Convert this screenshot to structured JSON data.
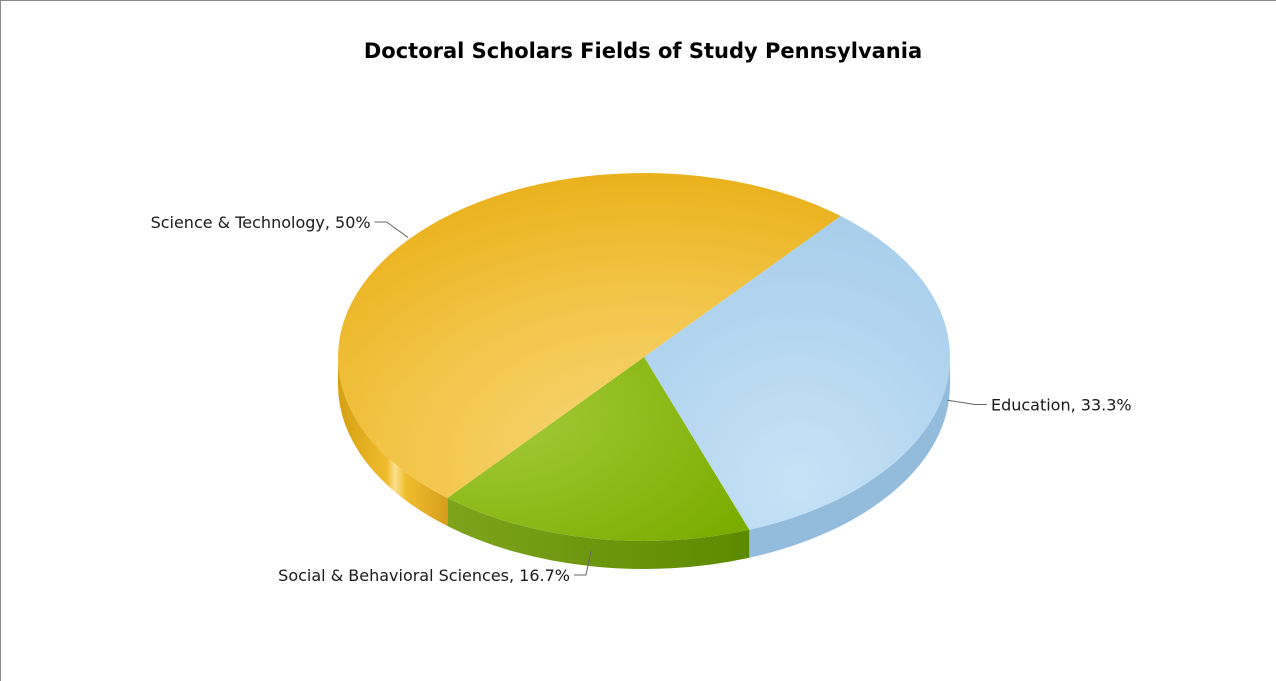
{
  "chart_data": {
    "type": "pie",
    "title": "Doctoral Scholars Fields of Study Pennsylvania",
    "categories": [
      "Education",
      "Social & Behavioral Sciences",
      "Science & Technology"
    ],
    "values": [
      33.3,
      16.7,
      50
    ],
    "labels": [
      "Education, 33.3%",
      "Social & Behavioral Sciences, 16.7%",
      "Science & Technology, 50%"
    ],
    "colors": [
      "#b3d6f0",
      "#8dbb1f",
      "#f2c13a"
    ]
  }
}
